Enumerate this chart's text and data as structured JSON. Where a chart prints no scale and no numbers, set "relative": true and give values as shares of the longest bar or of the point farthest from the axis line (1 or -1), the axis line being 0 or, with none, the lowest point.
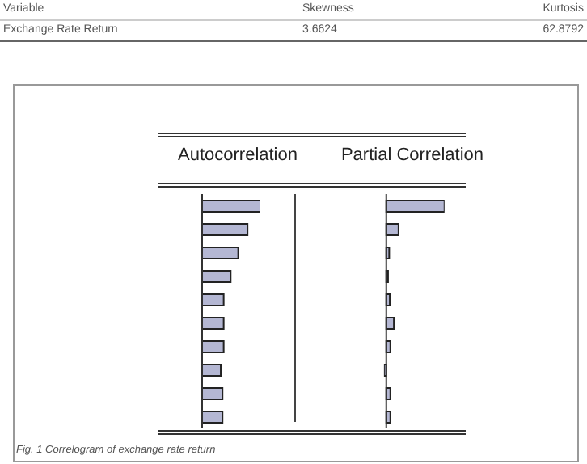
{
  "chart_data": [
    {
      "type": "other",
      "annotations": [
        "Variable",
        "Skewness",
        "Kurtosis",
        "Exchange Rate Return",
        "3.6624",
        "62.8792"
      ]
    },
    {
      "type": "bar",
      "orientation": "horizontal",
      "relative": true,
      "title": "Autocorrelation",
      "categories": [
        null,
        null,
        null,
        null,
        null,
        null,
        null,
        null,
        null,
        null
      ],
      "series": [
        {
          "color": "#b4b7d3",
          "values": [
            1,
            0.78,
            0.62,
            0.49,
            0.37,
            0.37,
            0.37,
            0.32,
            0.35,
            0.35
          ]
        }
      ]
    },
    {
      "type": "bar",
      "orientation": "horizontal",
      "relative": true,
      "title": "Partial Correlation",
      "categories": [
        null,
        null,
        null,
        null,
        null,
        null,
        null,
        null,
        null,
        null
      ],
      "series": [
        {
          "color": "#b4b7d3",
          "values": [
            1,
            0.21,
            0.05,
            0.03,
            0.06,
            0.13,
            0.07,
            -0.04,
            0.07,
            0.07
          ]
        }
      ]
    },
    {
      "type": "other",
      "annotations": [
        "Fig. 1 Correlogram of exchange rate return"
      ]
    }
  ]
}
